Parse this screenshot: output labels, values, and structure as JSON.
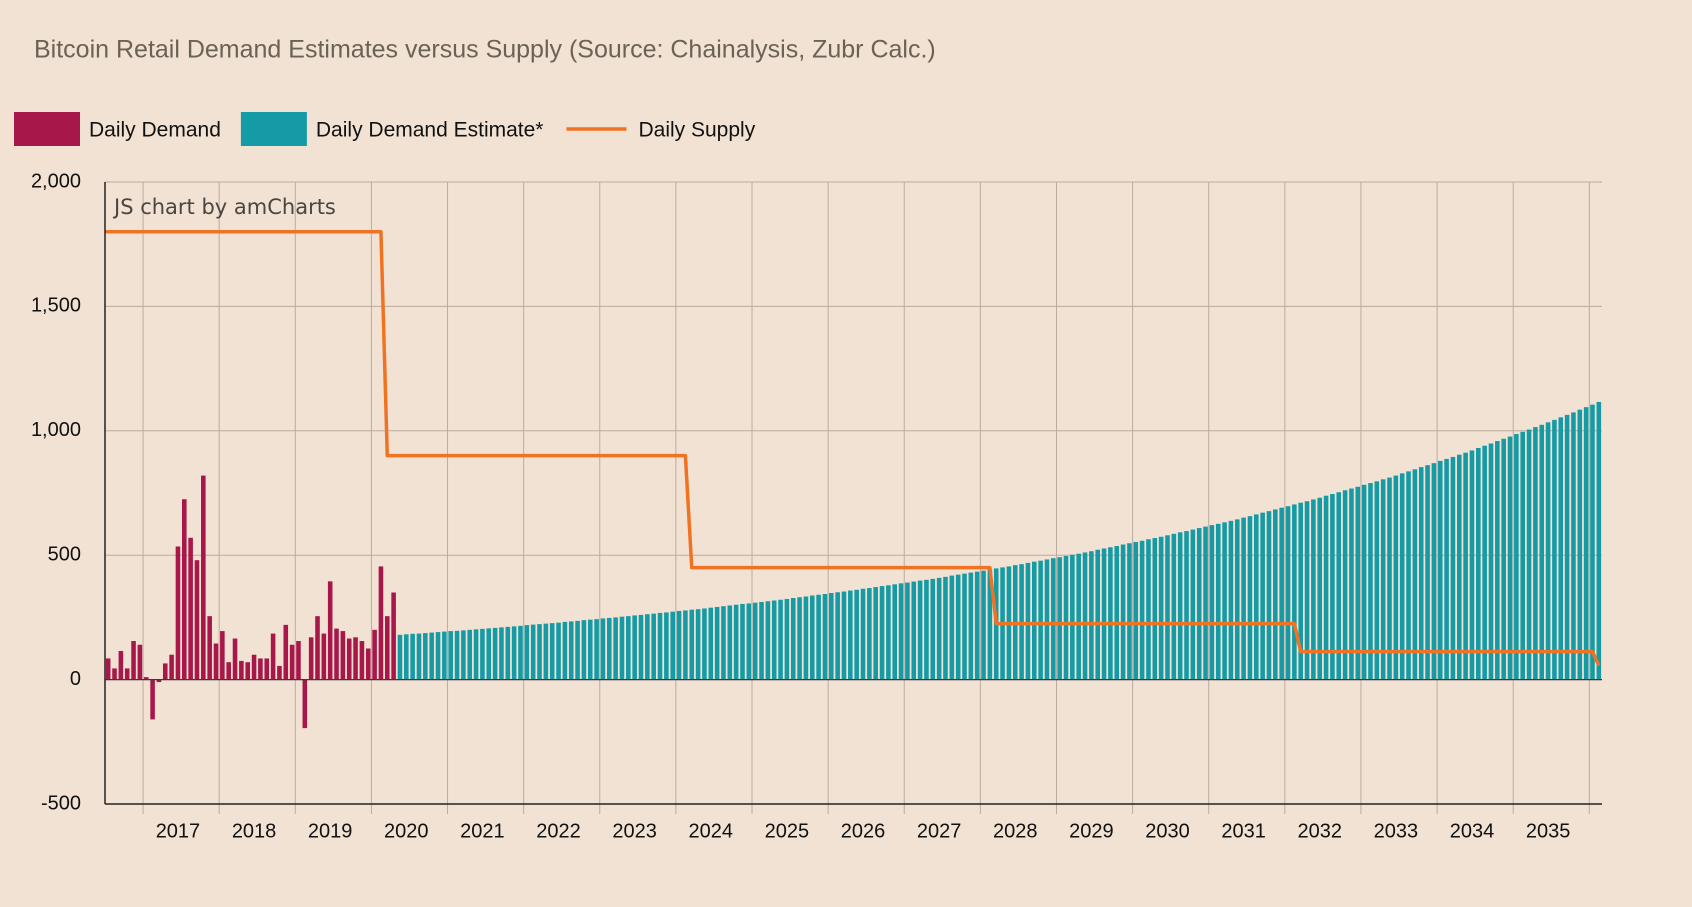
{
  "chart_data": {
    "type": "bar",
    "title": "Bitcoin Retail Demand Estimates versus Supply (Source: Chainalysis, Zubr Calc.)",
    "watermark": "JS chart by amCharts",
    "grid": true,
    "ylim": [
      -500,
      2000
    ],
    "yticks": [
      {
        "value": -500,
        "label": "-500"
      },
      0,
      500,
      {
        "value": 1000,
        "label": "1,000"
      },
      {
        "value": 1500,
        "label": "1,500"
      },
      {
        "value": 2000,
        "label": "2,000"
      }
    ],
    "categories": [
      null,
      null,
      null,
      null,
      null,
      null,
      null,
      null,
      null,
      null,
      null,
      "2017",
      null,
      null,
      null,
      null,
      null,
      null,
      null,
      null,
      null,
      null,
      null,
      "2018",
      null,
      null,
      null,
      null,
      null,
      null,
      null,
      null,
      null,
      null,
      null,
      "2019",
      null,
      null,
      null,
      null,
      null,
      null,
      null,
      null,
      null,
      null,
      null,
      "2020",
      null,
      null,
      null,
      null,
      null,
      null,
      null,
      null,
      null,
      null,
      null,
      "2021",
      null,
      null,
      null,
      null,
      null,
      null,
      null,
      null,
      null,
      null,
      null,
      "2022",
      null,
      null,
      null,
      null,
      null,
      null,
      null,
      null,
      null,
      null,
      null,
      "2023",
      null,
      null,
      null,
      null,
      null,
      null,
      null,
      null,
      null,
      null,
      null,
      "2024",
      null,
      null,
      null,
      null,
      null,
      null,
      null,
      null,
      null,
      null,
      null,
      "2025",
      null,
      null,
      null,
      null,
      null,
      null,
      null,
      null,
      null,
      null,
      null,
      "2026",
      null,
      null,
      null,
      null,
      null,
      null,
      null,
      null,
      null,
      null,
      null,
      "2027",
      null,
      null,
      null,
      null,
      null,
      null,
      null,
      null,
      null,
      null,
      null,
      "2028",
      null,
      null,
      null,
      null,
      null,
      null,
      null,
      null,
      null,
      null,
      null,
      "2029",
      null,
      null,
      null,
      null,
      null,
      null,
      null,
      null,
      null,
      null,
      null,
      "2030",
      null,
      null,
      null,
      null,
      null,
      null,
      null,
      null,
      null,
      null,
      null,
      "2031",
      null,
      null,
      null,
      null,
      null,
      null,
      null,
      null,
      null,
      null,
      null,
      "2032",
      null,
      null,
      null,
      null,
      null,
      null,
      null,
      null,
      null,
      null,
      null,
      "2033",
      null,
      null,
      null,
      null,
      null,
      null,
      null,
      null,
      null,
      null,
      null,
      "2034",
      null,
      null,
      null,
      null,
      null,
      null,
      null,
      null,
      null,
      null,
      null,
      "2035",
      null,
      null,
      null,
      null,
      null,
      null,
      null,
      null
    ],
    "series": [
      {
        "name": "Daily Demand",
        "type": "bar",
        "color": "#a8174a",
        "values": [
          85,
          45,
          115,
          45,
          155,
          140,
          10,
          -160,
          -10,
          65,
          100,
          535,
          725,
          570,
          480,
          820,
          255,
          145,
          195,
          70,
          165,
          75,
          70,
          100,
          85,
          85,
          185,
          55,
          220,
          140,
          155,
          -195,
          170,
          255,
          185,
          395,
          205,
          195,
          165,
          170,
          155,
          125,
          200,
          455,
          255,
          350,
          null,
          null,
          null,
          null,
          null,
          null,
          null,
          null,
          null,
          null,
          null,
          null,
          null,
          null,
          null,
          null,
          null,
          null,
          null,
          null,
          null,
          null,
          null,
          null,
          null,
          null,
          null,
          null,
          null,
          null,
          null,
          null,
          null,
          null,
          null,
          null,
          null,
          null,
          null,
          null,
          null,
          null,
          null,
          null,
          null,
          null,
          null,
          null,
          null,
          null,
          null,
          null,
          null,
          null,
          null,
          null,
          null,
          null,
          null,
          null,
          null,
          null,
          null,
          null,
          null,
          null,
          null,
          null,
          null,
          null,
          null,
          null,
          null,
          null,
          null,
          null,
          null,
          null,
          null,
          null,
          null,
          null,
          null,
          null,
          null,
          null,
          null,
          null,
          null,
          null,
          null,
          null,
          null,
          null,
          null,
          null,
          null,
          null,
          null,
          null,
          null,
          null,
          null,
          null,
          null,
          null,
          null,
          null,
          null,
          null,
          null,
          null,
          null,
          null,
          null,
          null,
          null,
          null,
          null,
          null,
          null,
          null,
          null,
          null,
          null,
          null,
          null,
          null,
          null,
          null,
          null,
          null,
          null,
          null,
          null,
          null,
          null,
          null,
          null,
          null,
          null,
          null,
          null,
          null,
          null,
          null,
          null,
          null,
          null,
          null,
          null,
          null,
          null,
          null,
          null,
          null,
          null,
          null,
          null,
          null,
          null,
          null,
          null,
          null,
          null,
          null,
          null,
          null,
          null,
          null,
          null,
          null,
          null,
          null,
          null,
          null,
          null,
          null,
          null,
          null,
          null,
          null,
          null,
          null,
          null,
          null,
          null,
          null,
          null,
          null
        ]
      },
      {
        "name": "Daily Demand Estimate*",
        "type": "bar",
        "color": "#159ba5",
        "values": [
          null,
          null,
          null,
          null,
          null,
          null,
          null,
          null,
          null,
          null,
          null,
          null,
          null,
          null,
          null,
          null,
          null,
          null,
          null,
          null,
          null,
          null,
          null,
          null,
          null,
          null,
          null,
          null,
          null,
          null,
          null,
          null,
          null,
          null,
          null,
          null,
          null,
          null,
          null,
          null,
          null,
          null,
          null,
          null,
          null,
          null,
          180,
          182,
          184,
          185,
          187,
          189,
          191,
          193,
          195,
          196,
          198,
          200,
          202,
          204,
          206,
          208,
          210,
          212,
          214,
          216,
          219,
          221,
          223,
          225,
          227,
          229,
          232,
          234,
          236,
          239,
          241,
          243,
          246,
          248,
          250,
          253,
          255,
          258,
          260,
          263,
          265,
          268,
          270,
          273,
          276,
          278,
          281,
          283,
          286,
          289,
          292,
          295,
          298,
          301,
          304,
          306,
          309,
          312,
          315,
          318,
          321,
          324,
          328,
          331,
          334,
          338,
          341,
          344,
          348,
          351,
          354,
          358,
          361,
          365,
          368,
          372,
          376,
          379,
          383,
          387,
          390,
          394,
          398,
          401,
          405,
          409,
          413,
          418,
          422,
          426,
          430,
          434,
          438,
          443,
          447,
          451,
          455,
          460,
          464,
          469,
          474,
          478,
          483,
          488,
          492,
          497,
          502,
          506,
          511,
          516,
          522,
          527,
          532,
          537,
          543,
          548,
          553,
          558,
          564,
          569,
          574,
          580,
          586,
          592,
          597,
          603,
          609,
          615,
          621,
          626,
          632,
          638,
          644,
          651,
          657,
          664,
          671,
          677,
          684,
          691,
          697,
          704,
          711,
          717,
          724,
          731,
          739,
          746,
          753,
          761,
          768,
          775,
          783,
          790,
          797,
          805,
          812,
          820,
          829,
          837,
          845,
          854,
          862,
          870,
          879,
          887,
          895,
          904,
          912,
          921,
          931,
          940,
          949,
          959,
          968,
          977,
          987,
          996,
          1005,
          1015,
          1024,
          1034,
          1044,
          1054,
          1064,
          1074,
          1085,
          1095,
          1105,
          1116
        ]
      },
      {
        "name": "Daily Supply",
        "type": "line",
        "color": "#ef7323",
        "values": [
          1800,
          1800,
          1800,
          1800,
          1800,
          1800,
          1800,
          1800,
          1800,
          1800,
          1800,
          1800,
          1800,
          1800,
          1800,
          1800,
          1800,
          1800,
          1800,
          1800,
          1800,
          1800,
          1800,
          1800,
          1800,
          1800,
          1800,
          1800,
          1800,
          1800,
          1800,
          1800,
          1800,
          1800,
          1800,
          1800,
          1800,
          1800,
          1800,
          1800,
          1800,
          1800,
          1800,
          1800,
          900,
          900,
          900,
          900,
          900,
          900,
          900,
          900,
          900,
          900,
          900,
          900,
          900,
          900,
          900,
          900,
          900,
          900,
          900,
          900,
          900,
          900,
          900,
          900,
          900,
          900,
          900,
          900,
          900,
          900,
          900,
          900,
          900,
          900,
          900,
          900,
          900,
          900,
          900,
          900,
          900,
          900,
          900,
          900,
          900,
          900,
          900,
          900,
          450,
          450,
          450,
          450,
          450,
          450,
          450,
          450,
          450,
          450,
          450,
          450,
          450,
          450,
          450,
          450,
          450,
          450,
          450,
          450,
          450,
          450,
          450,
          450,
          450,
          450,
          450,
          450,
          450,
          450,
          450,
          450,
          450,
          450,
          450,
          450,
          450,
          450,
          450,
          450,
          450,
          450,
          450,
          450,
          450,
          450,
          450,
          450,
          225,
          225,
          225,
          225,
          225,
          225,
          225,
          225,
          225,
          225,
          225,
          225,
          225,
          225,
          225,
          225,
          225,
          225,
          225,
          225,
          225,
          225,
          225,
          225,
          225,
          225,
          225,
          225,
          225,
          225,
          225,
          225,
          225,
          225,
          225,
          225,
          225,
          225,
          225,
          225,
          225,
          225,
          225,
          225,
          225,
          225,
          225,
          225,
          112.5,
          112.5,
          112.5,
          112.5,
          112.5,
          112.5,
          112.5,
          112.5,
          112.5,
          112.5,
          112.5,
          112.5,
          112.5,
          112.5,
          112.5,
          112.5,
          112.5,
          112.5,
          112.5,
          112.5,
          112.5,
          112.5,
          112.5,
          112.5,
          112.5,
          112.5,
          112.5,
          112.5,
          112.5,
          112.5,
          112.5,
          112.5,
          112.5,
          112.5,
          112.5,
          112.5,
          112.5,
          112.5,
          112.5,
          112.5,
          112.5,
          112.5,
          112.5,
          112.5,
          112.5,
          112.5,
          112.5,
          56.25
        ]
      }
    ]
  }
}
